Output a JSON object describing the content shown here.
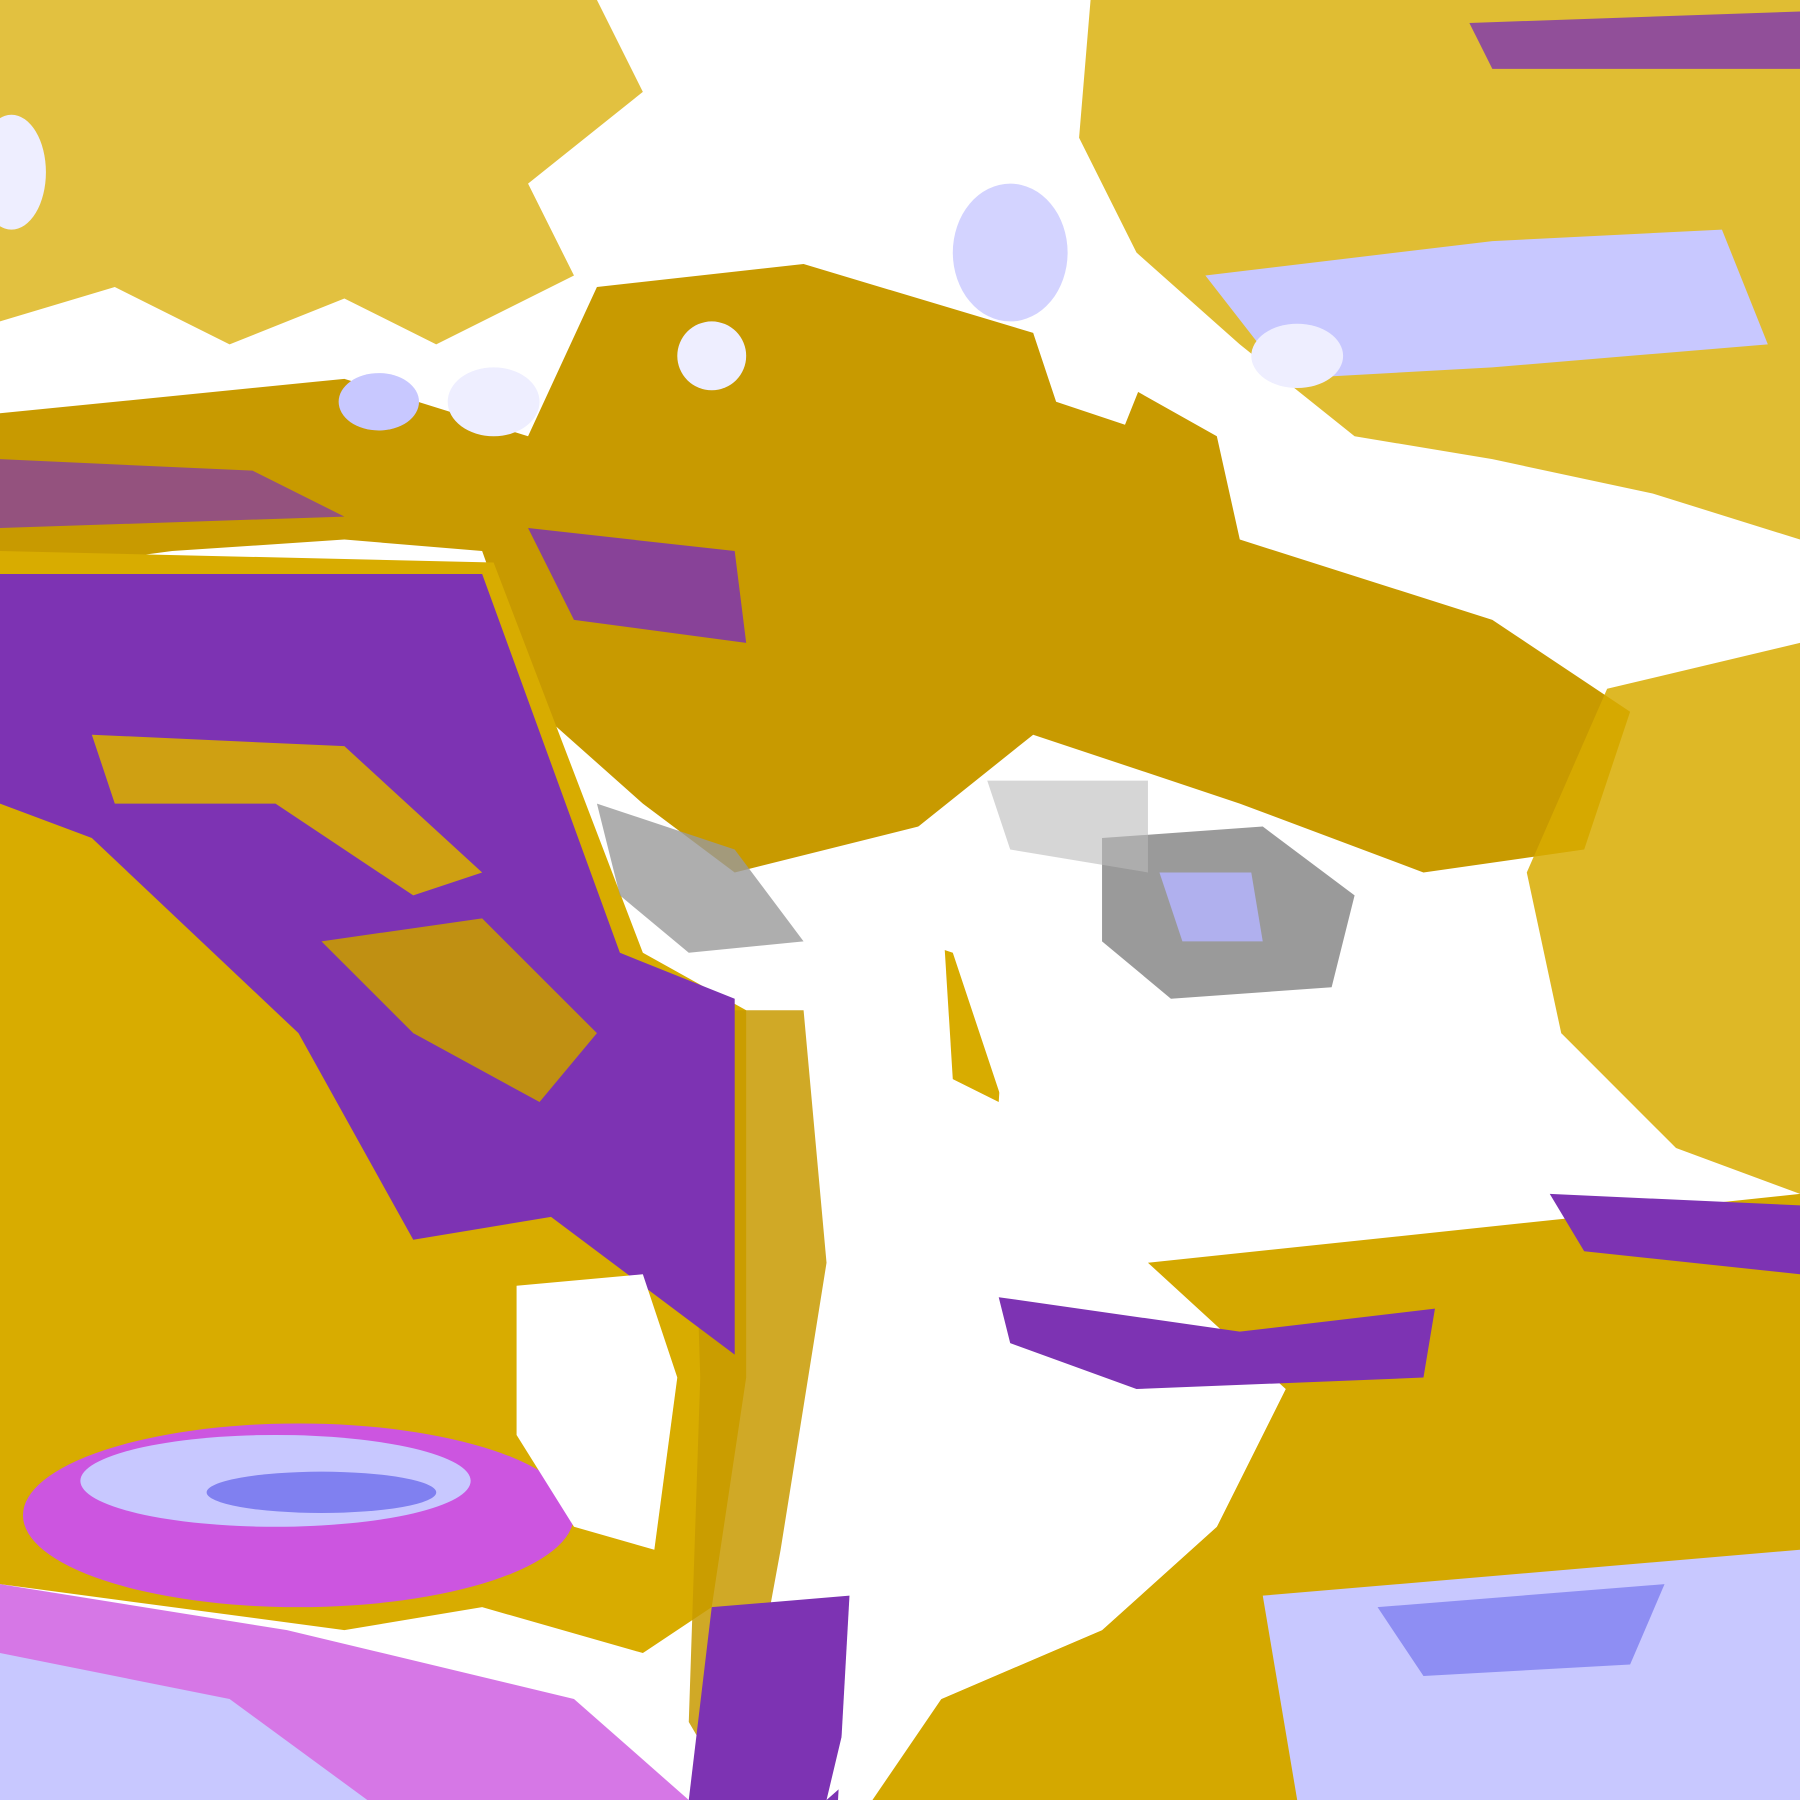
{
  "image": {
    "kind": "false-color satellite classification",
    "colors": {
      "clear": "#ffffff",
      "gold": "#d8ac00",
      "dark_gold": "#b88c00",
      "purple": "#7d33b3",
      "magenta": "#cc55e0",
      "lavender": "#c8c8ff",
      "blue": "#8080f0",
      "gray": "#9a9a9a"
    }
  }
}
